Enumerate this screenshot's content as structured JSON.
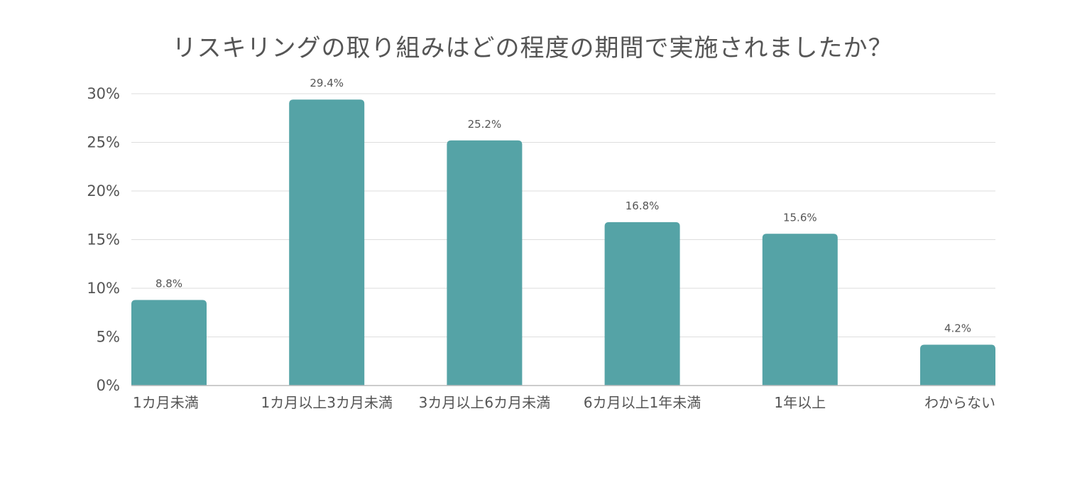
{
  "chart_data": {
    "type": "bar",
    "title": "リスキリングの取り組みはどの程度の期間で実施されましたか？",
    "categories": [
      "1カ月未満",
      "1カ月以上3カ月未満",
      "3カ月以上6カ月未満",
      "6カ月以上1年未満",
      "1年以上",
      "わからない"
    ],
    "values": [
      8.8,
      29.4,
      25.2,
      16.8,
      15.6,
      4.2
    ],
    "data_labels": [
      "8.8%",
      "29.4%",
      "25.2%",
      "16.8%",
      "15.6%",
      "4.2%"
    ],
    "ylim": [
      0,
      30
    ],
    "yticks": [
      0,
      5,
      10,
      15,
      20,
      25,
      30
    ],
    "ytick_labels": [
      "0%",
      "5%",
      "10%",
      "15%",
      "20%",
      "25%",
      "30%"
    ],
    "xlabel": "",
    "ylabel": "",
    "grid": true,
    "legend": "none",
    "bar_color": "#55a3a6"
  }
}
